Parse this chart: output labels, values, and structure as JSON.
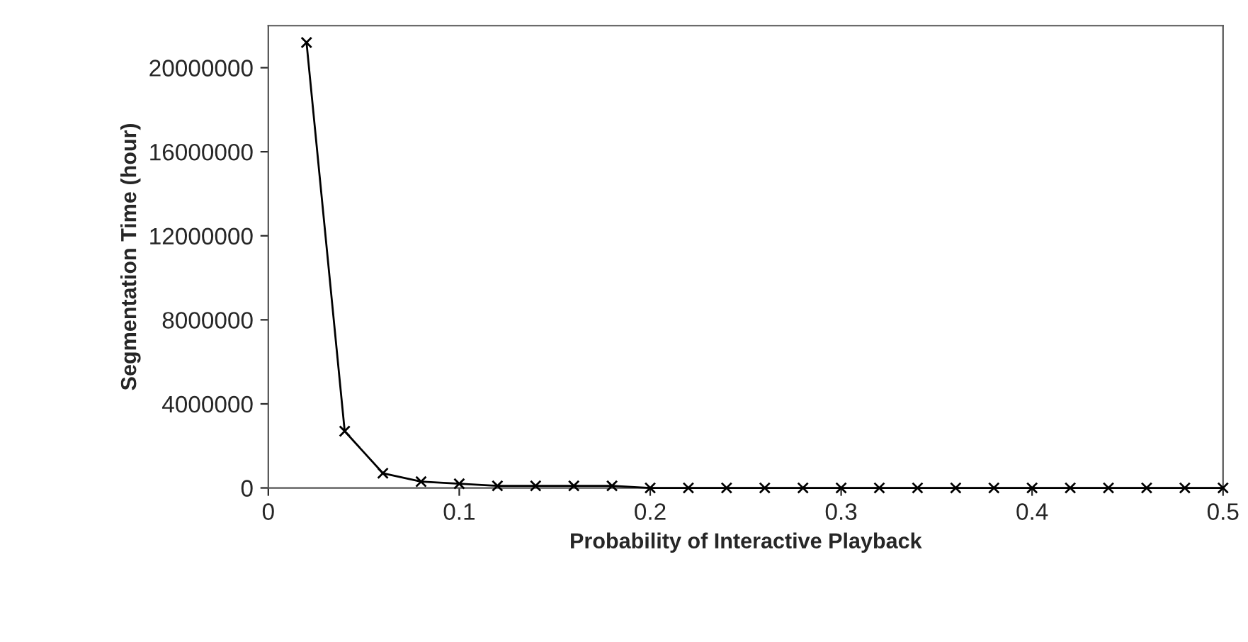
{
  "chart_data": {
    "type": "line",
    "xlabel": "Probability of Interactive Playback",
    "ylabel": "Segmentation Time (hour)",
    "x": [
      0.02,
      0.04,
      0.06,
      0.08,
      0.1,
      0.12,
      0.14,
      0.16,
      0.18,
      0.2,
      0.22,
      0.24,
      0.26,
      0.28,
      0.3,
      0.32,
      0.34,
      0.36,
      0.38,
      0.4,
      0.42,
      0.44,
      0.46,
      0.48,
      0.5
    ],
    "series": [
      {
        "color": "#000000",
        "values": [
          21200000,
          2700000,
          700000,
          300000,
          200000,
          100000,
          100000,
          100000,
          100000,
          0,
          0,
          0,
          0,
          0,
          0,
          0,
          0,
          0,
          0,
          0,
          0,
          0,
          0,
          0,
          0
        ]
      }
    ],
    "xlim": [
      0,
      0.5
    ],
    "xticks": [
      0,
      0.1,
      0.2,
      0.3,
      0.4,
      0.5
    ],
    "ylim": [
      0,
      22000000
    ],
    "yticks": [
      0,
      4000000,
      8000000,
      12000000,
      16000000,
      20000000
    ],
    "marker": "cross",
    "line_style": "solid",
    "grid": false,
    "legend": false
  }
}
